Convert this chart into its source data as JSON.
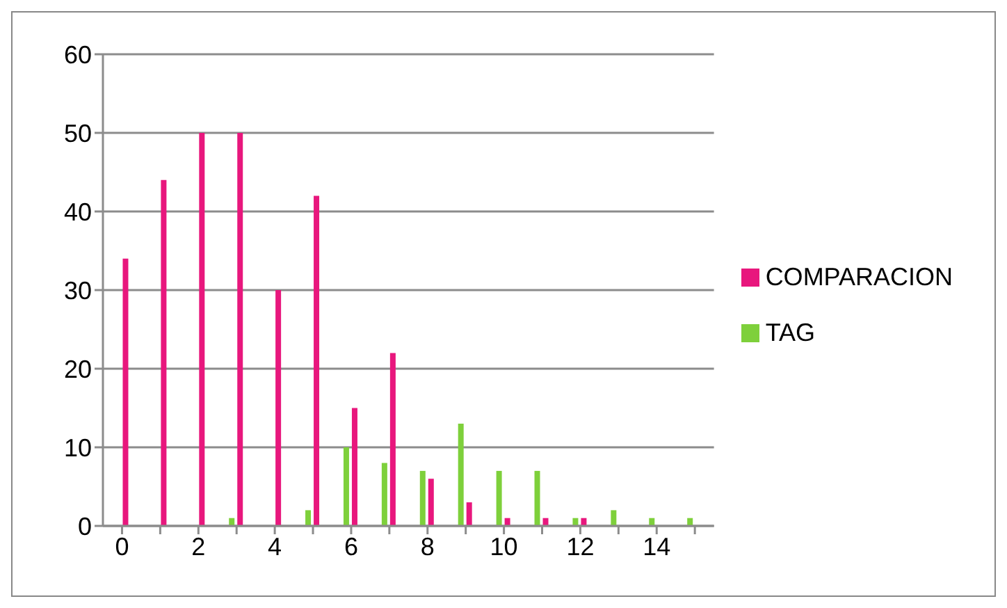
{
  "chart_data": {
    "type": "bar",
    "categories": [
      "0",
      null,
      "2",
      null,
      "4",
      null,
      "6",
      null,
      "8",
      null,
      "10",
      null,
      "12",
      null,
      "14",
      null
    ],
    "series": [
      {
        "name": "TAG",
        "color": "#7ed03b",
        "values": [
          0,
          0,
          0,
          1,
          0,
          2,
          10,
          8,
          7,
          13,
          7,
          7,
          1,
          2,
          1,
          1
        ]
      },
      {
        "name": "COMPARACION",
        "color": "#e8177d",
        "values": [
          34,
          44,
          50,
          50,
          30,
          42,
          15,
          22,
          6,
          3,
          1,
          1,
          1,
          0,
          0,
          0
        ]
      }
    ],
    "ylim": [
      0,
      60
    ],
    "yticks": [
      0,
      10,
      20,
      30,
      40,
      50,
      60
    ],
    "grid": "y",
    "legend": "right"
  }
}
